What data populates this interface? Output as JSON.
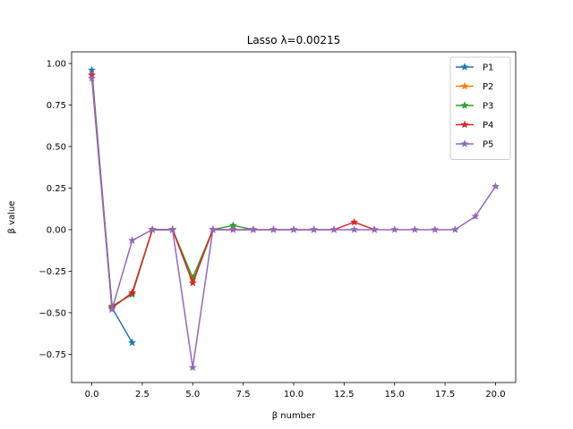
{
  "chart_data": {
    "type": "line",
    "title": "Lasso λ=0.00215",
    "xlabel": "β number",
    "ylabel": "β value",
    "xlim": [
      -1,
      21
    ],
    "ylim": [
      -0.92,
      1.07
    ],
    "xticks": [
      0,
      2.5,
      5,
      7.5,
      10,
      12.5,
      15,
      17.5,
      20
    ],
    "xtick_labels": [
      "0.0",
      "2.5",
      "5.0",
      "7.5",
      "10.0",
      "12.5",
      "15.0",
      "17.5",
      "20.0"
    ],
    "yticks": [
      -0.75,
      -0.5,
      -0.25,
      0,
      0.25,
      0.5,
      0.75,
      1.0
    ],
    "ytick_labels": [
      "−0.75",
      "−0.50",
      "−0.25",
      "0.00",
      "0.25",
      "0.50",
      "0.75",
      "1.00"
    ],
    "legend_position": "top-right",
    "marker": "star",
    "series": [
      {
        "name": "P1",
        "color": "#1f77b4",
        "x": [
          0,
          1,
          2
        ],
        "values": [
          0.96,
          -0.47,
          -0.68
        ]
      },
      {
        "name": "P2",
        "color": "#ff7f0e",
        "x": [
          0,
          1,
          2,
          3,
          4,
          5,
          6
        ],
        "values": [
          0.93,
          -0.47,
          -0.38,
          0.0,
          0.0,
          -0.3,
          0.0
        ]
      },
      {
        "name": "P3",
        "color": "#2ca02c",
        "x": [
          0,
          1,
          2,
          3,
          4,
          5,
          6,
          7,
          8
        ],
        "values": [
          0.93,
          -0.46,
          -0.39,
          0.0,
          0.0,
          -0.29,
          0.0,
          0.025,
          0.0
        ]
      },
      {
        "name": "P4",
        "color": "#d62728",
        "x": [
          0,
          1,
          2,
          3,
          4,
          5,
          6,
          7,
          8,
          9,
          10,
          11,
          12,
          13,
          14
        ],
        "values": [
          0.93,
          -0.47,
          -0.38,
          0.0,
          0.0,
          -0.32,
          0.0,
          0.0,
          0.0,
          0.0,
          0.0,
          0.0,
          0.0,
          0.045,
          0.0
        ]
      },
      {
        "name": "P5",
        "color": "#9467bd",
        "x": [
          0,
          1,
          2,
          3,
          4,
          5,
          6,
          7,
          8,
          9,
          10,
          11,
          12,
          13,
          14,
          15,
          16,
          17,
          18,
          19,
          20
        ],
        "values": [
          0.91,
          -0.48,
          -0.065,
          0.0,
          0.0,
          -0.83,
          0.0,
          0.0,
          0.0,
          0.0,
          0.0,
          0.0,
          0.0,
          0.0,
          0.0,
          0.0,
          0.0,
          0.0,
          0.0,
          0.08,
          0.26
        ]
      }
    ]
  }
}
